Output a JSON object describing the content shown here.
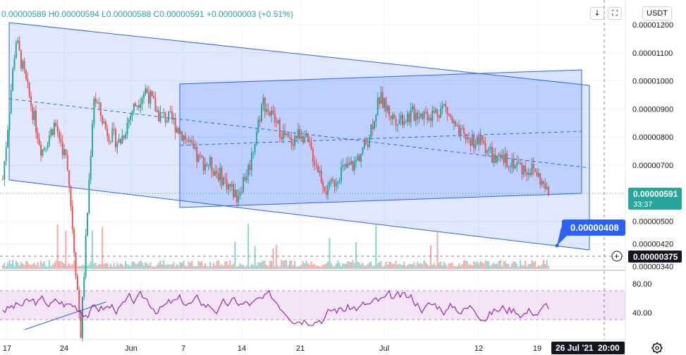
{
  "header": {
    "ohlc_text": "0.00000589  H0.00000594  L0.00000588  C0.00000591  +0.00000003 (+0.51%)",
    "currency_button": "USDT",
    "download_icon": "download-icon",
    "fullscreen_icon": "fullscreen-icon"
  },
  "price_axis": {
    "ticks": [
      "0.00001200",
      "0.00001100",
      "0.00001000",
      "0.00000900",
      "0.00000800",
      "0.00000700",
      "0.00000500",
      "0.00000420",
      "0.00000340"
    ],
    "current_price_label": "0.00000591",
    "countdown_label": "33:37",
    "crosshair_label": "0.00000375",
    "annotation_label": "0.00000408",
    "colors": {
      "current": "#26a69a",
      "crosshair": "#131722",
      "annotation": "#2962ff"
    }
  },
  "rsi_axis": {
    "ticks": [
      "80.00",
      "40.00"
    ]
  },
  "time_axis": {
    "ticks": [
      "17",
      "24",
      "Jun",
      "7",
      "14",
      "21",
      "Jul",
      "12",
      "19"
    ],
    "crosshair_date": "26 Jul '21",
    "crosshair_time": "20:00",
    "settings_icon": "gear-icon"
  },
  "chart_data": [
    {
      "type": "candlestick",
      "title": "",
      "y_range": [
        3.4e-06,
        1.23e-05
      ],
      "x_categories": [
        "17",
        "24",
        "Jun",
        "7",
        "14",
        "21",
        "Jul",
        "12",
        "19"
      ],
      "close_path": [
        [
          0,
          6.5e-06
        ],
        [
          2,
          1.15e-05
        ],
        [
          3,
          9.5e-06
        ],
        [
          4,
          7.5e-06
        ],
        [
          5,
          8.5e-06
        ],
        [
          6,
          7e-06
        ],
        [
          7,
          1.02e-06
        ],
        [
          8,
          9.5e-06
        ],
        [
          9,
          8.2e-06
        ],
        [
          10,
          7.8e-06
        ],
        [
          11,
          9e-06
        ],
        [
          12,
          9.7e-06
        ],
        [
          13,
          8.8e-06
        ],
        [
          14,
          8.6e-06
        ],
        [
          15,
          8e-06
        ],
        [
          16,
          7.2e-06
        ],
        [
          17,
          7e-06
        ],
        [
          18,
          6.5e-06
        ],
        [
          19,
          5.9e-06
        ],
        [
          20,
          7e-06
        ],
        [
          21,
          9.3e-06
        ],
        [
          22,
          8.5e-06
        ],
        [
          23,
          7.8e-06
        ],
        [
          24,
          8.2e-06
        ],
        [
          25,
          7.2e-06
        ],
        [
          26,
          6e-06
        ],
        [
          27,
          6.8e-06
        ],
        [
          28,
          7e-06
        ],
        [
          29,
          7.8e-06
        ],
        [
          30,
          9.4e-06
        ],
        [
          31,
          8.7e-06
        ],
        [
          32,
          8.7e-06
        ],
        [
          33,
          8.9e-06
        ],
        [
          34,
          8.8e-06
        ],
        [
          35,
          9.1e-06
        ],
        [
          36,
          8.1e-06
        ],
        [
          37,
          7.9e-06
        ],
        [
          38,
          7.8e-06
        ],
        [
          39,
          7.1e-06
        ],
        [
          40,
          7.2e-06
        ],
        [
          41,
          6.9e-06
        ],
        [
          42,
          6.8e-06
        ],
        [
          43,
          5.91e-06
        ]
      ],
      "last": {
        "open": 5.89e-06,
        "high": 5.94e-06,
        "low": 5.88e-06,
        "close": 5.91e-06,
        "change": 3e-08,
        "change_pct": 0.51
      }
    },
    {
      "type": "bar",
      "title": "",
      "series": [
        {
          "name": "",
          "colors": [
            "#26a69a",
            "#ef5350"
          ]
        }
      ]
    },
    {
      "type": "line",
      "title": "",
      "ylim": [
        0,
        100
      ],
      "band": [
        30,
        70
      ],
      "series": [
        {
          "name": "",
          "color": "#9c27b0"
        }
      ]
    }
  ],
  "drawings": {
    "channel_color": "#2962ff",
    "channel_fill": "rgba(41,98,255,0.18)"
  }
}
